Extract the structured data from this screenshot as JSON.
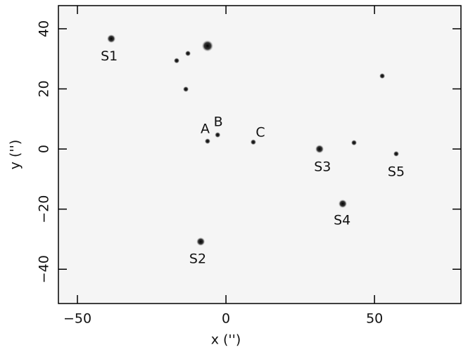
{
  "chart_data": {
    "type": "scatter",
    "xlabel": "x ('')",
    "ylabel": "y ('')",
    "xlim": [
      -56.4,
      79.1
    ],
    "ylim": [
      -51.4,
      47.7
    ],
    "xticks": [
      {
        "value": -50,
        "label": "−50"
      },
      0,
      50
    ],
    "yticks": [
      {
        "value": -40,
        "label": "−40"
      },
      {
        "value": -20,
        "label": "−20"
      },
      0,
      20,
      40
    ],
    "color": "#111111",
    "x": [
      -38.6,
      -6.2,
      -16.6,
      -12.8,
      -13.5,
      -8.5,
      -6.2,
      -2.8,
      9.2,
      31.5,
      43.1,
      39.3,
      57.3,
      52.6
    ],
    "values": [
      36.7,
      34.3,
      29.4,
      31.8,
      19.9,
      -30.8,
      2.6,
      4.7,
      2.3,
      0,
      2.1,
      -18.2,
      -1.6,
      24.3
    ],
    "annotations": [
      {
        "text": "S1",
        "x": -39.3,
        "y": 30.8
      },
      {
        "text": "S2",
        "x": -9.5,
        "y": -36.7
      },
      {
        "text": "A",
        "x": -7.0,
        "y": 6.6
      },
      {
        "text": "B",
        "x": -2.6,
        "y": 8.9
      },
      {
        "text": "C",
        "x": 11.6,
        "y": 5.4
      },
      {
        "text": "S3",
        "x": 32.5,
        "y": -6.1
      },
      {
        "text": "S4",
        "x": 39.1,
        "y": -23.8
      },
      {
        "text": "S5",
        "x": 57.3,
        "y": -7.7
      }
    ]
  }
}
